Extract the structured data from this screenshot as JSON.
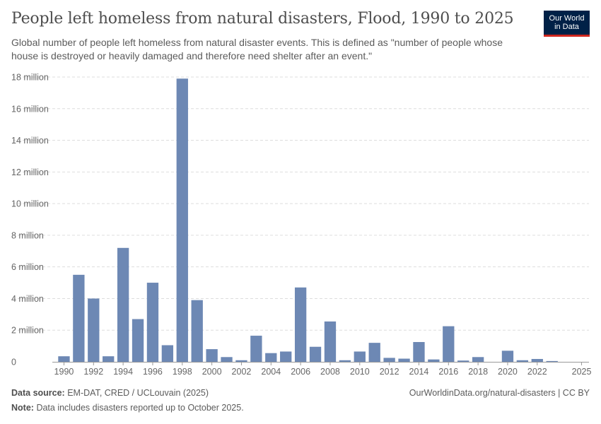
{
  "header": {
    "title": "People left homeless from natural disasters, Flood, 1990 to 2025",
    "subtitle": "Global number of people left homeless from natural disaster events. This is defined as \"number of people whose house is destroyed or heavily damaged and therefore need shelter after an event.\"",
    "logo_line1": "Our World",
    "logo_line2": "in Data"
  },
  "footer": {
    "source_label": "Data source:",
    "source_text": "EM-DAT, CRED / UCLouvain (2025)",
    "note_label": "Note:",
    "note_text": "Data includes disasters reported up to October 2025.",
    "url_text": "OurWorldinData.org/natural-disasters | CC BY"
  },
  "colors": {
    "bar": "#6d88b4",
    "grid": "#dddddd",
    "axis": "#999999"
  },
  "chart_data": {
    "type": "bar",
    "title": "People left homeless from natural disasters, Flood, 1990 to 2025",
    "xlabel": "",
    "ylabel": "",
    "ylim": [
      0,
      18000000
    ],
    "yticks": [
      0,
      2000000,
      4000000,
      6000000,
      8000000,
      10000000,
      12000000,
      14000000,
      16000000,
      18000000
    ],
    "ytick_labels": [
      "0",
      "2 million",
      "4 million",
      "6 million",
      "8 million",
      "10 million",
      "12 million",
      "14 million",
      "16 million",
      "18 million"
    ],
    "xticks": [
      "1990",
      "1992",
      "1994",
      "1996",
      "1998",
      "2000",
      "2002",
      "2004",
      "2006",
      "2008",
      "2010",
      "2012",
      "2014",
      "2016",
      "2018",
      "2020",
      "2022",
      "2025"
    ],
    "categories": [
      "1990",
      "1991",
      "1992",
      "1993",
      "1994",
      "1995",
      "1996",
      "1997",
      "1998",
      "1999",
      "2000",
      "2001",
      "2002",
      "2003",
      "2004",
      "2005",
      "2006",
      "2007",
      "2008",
      "2009",
      "2010",
      "2011",
      "2012",
      "2013",
      "2014",
      "2015",
      "2016",
      "2017",
      "2018",
      "2019",
      "2020",
      "2021",
      "2022",
      "2023",
      "2024",
      "2025"
    ],
    "values": [
      350000,
      5500000,
      4000000,
      350000,
      7200000,
      2700000,
      5000000,
      1050000,
      17900000,
      3900000,
      800000,
      300000,
      100000,
      1650000,
      550000,
      650000,
      4700000,
      950000,
      2550000,
      100000,
      650000,
      1200000,
      250000,
      200000,
      1250000,
      150000,
      2250000,
      80000,
      300000,
      0,
      700000,
      100000,
      180000,
      50000,
      0,
      0
    ],
    "grid": "horizontal dashed",
    "series_name": "Flood"
  }
}
